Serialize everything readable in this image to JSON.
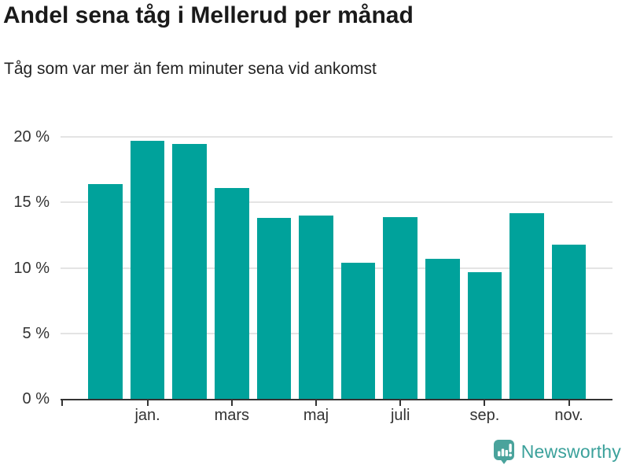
{
  "header": {
    "title": "Andel sena tåg i Mellerud per månad",
    "subtitle": "Tåg som var mer än fem minuter sena vid ankomst"
  },
  "footer": {
    "brand": "Newsworthy"
  },
  "colors": {
    "bar": "#00a29b",
    "grid": "#e4e4e4",
    "axis": "#333333",
    "tick_text": "#333333",
    "title_text": "#1a1a1a",
    "brand_text": "#3ba19b",
    "logo": "#4aa39c"
  },
  "chart_data": {
    "type": "bar",
    "title": "Andel sena tåg i Mellerud per månad",
    "subtitle": "Tåg som var mer än fem minuter sena vid ankomst",
    "categories": [
      "",
      "jan.",
      "",
      "mars",
      "",
      "maj",
      "",
      "juli",
      "",
      "sep.",
      "",
      "nov."
    ],
    "values": [
      16.4,
      19.7,
      19.5,
      16.1,
      13.8,
      14.0,
      10.4,
      13.9,
      10.7,
      9.7,
      14.2,
      11.8
    ],
    "unit": "%",
    "y_ticks": [
      0,
      5,
      10,
      15,
      20
    ],
    "y_tick_labels": [
      "0 %",
      "5 %",
      "10 %",
      "15 %",
      "20 %"
    ],
    "ylim": [
      0,
      22
    ],
    "grid": true,
    "legend": "none",
    "bar_color": "#00a29b"
  }
}
